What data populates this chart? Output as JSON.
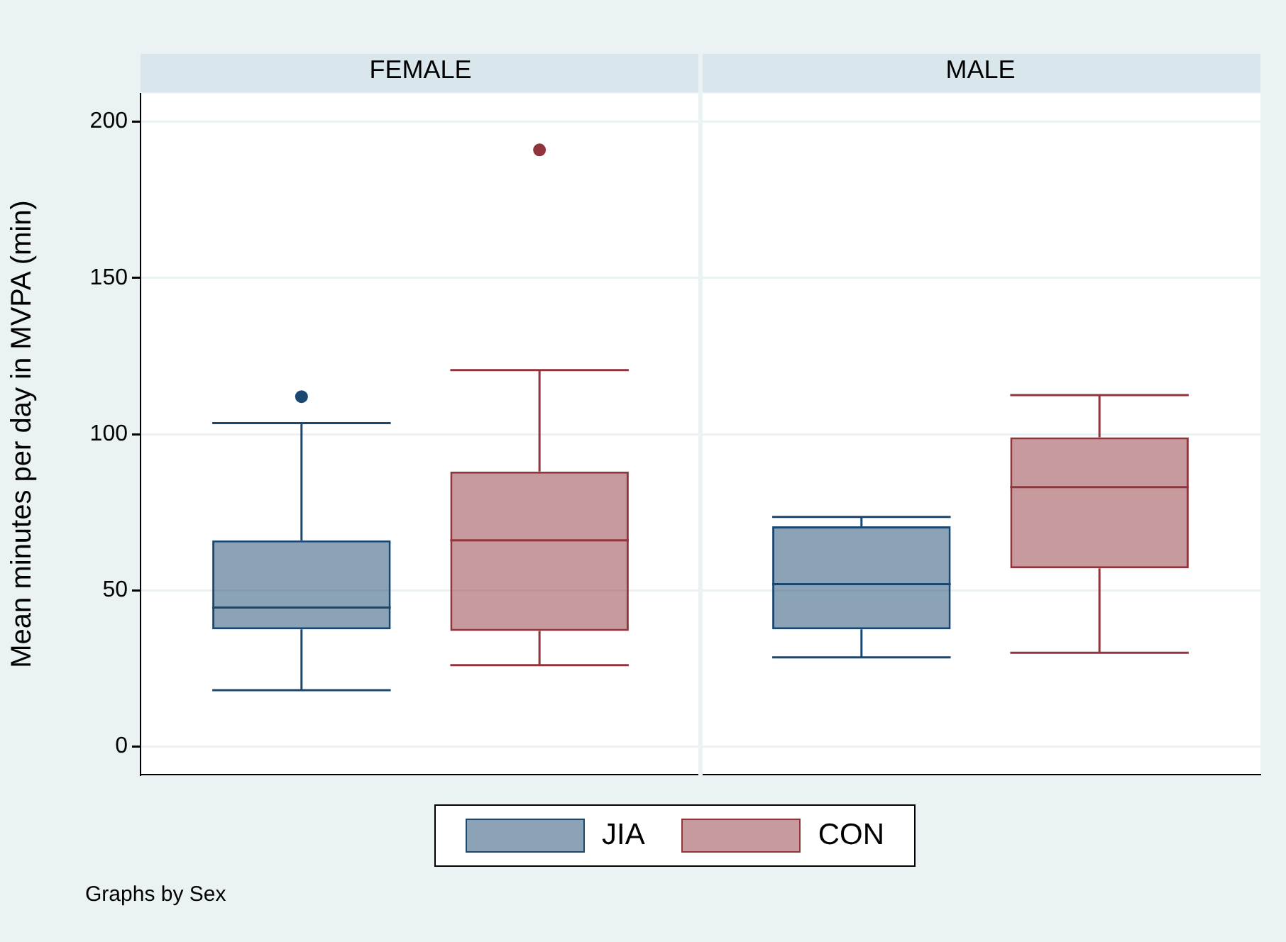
{
  "chart_data": {
    "type": "box",
    "ylabel": "Mean minutes per day in MVPA (min)",
    "categories": [
      "FEMALE",
      "MALE"
    ],
    "ylim": [
      -9,
      209
    ],
    "yticks": [
      0,
      50,
      100,
      150,
      200
    ],
    "grid": "y",
    "legend": "bottom",
    "annotations": [
      "Graphs by Sex"
    ],
    "series": [
      {
        "name": "JIA",
        "color": "#1a476f",
        "boxes": [
          {
            "low": 18,
            "q1": 37.5,
            "median": 44.5,
            "q3": 66,
            "high": 103.5,
            "outliers": [
              112
            ]
          },
          {
            "low": 28.5,
            "q1": 37.5,
            "median": 52,
            "q3": 70.5,
            "high": 73.5
          }
        ]
      },
      {
        "name": "CON",
        "color": "#90353b",
        "boxes": [
          {
            "low": 26,
            "q1": 37,
            "median": 66,
            "q3": 88,
            "high": 120.5,
            "outliers": [
              191
            ]
          },
          {
            "low": 30,
            "q1": 57,
            "median": 83,
            "q3": 99,
            "high": 112.5
          }
        ]
      }
    ]
  }
}
